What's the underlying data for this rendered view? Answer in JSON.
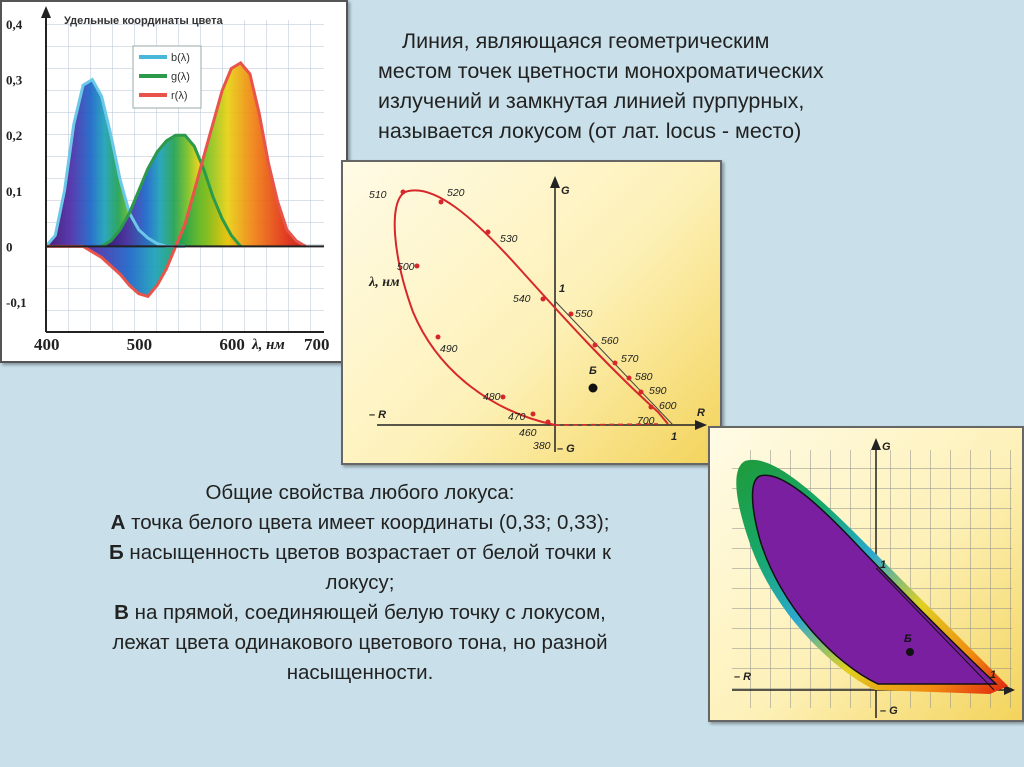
{
  "definition": {
    "lines": [
      "Линия, являющаяся геометрическим",
      "местом точек цветности монохроматических",
      "излучений и замкнутая линией пурпурных,",
      "называется локусом (от лат. locus - место)"
    ]
  },
  "properties": {
    "heading": "Общие свойства любого локуса:",
    "items": [
      {
        "letter": "А",
        "text": " точка белого цвета имеет координаты (0,33; 0,33);"
      },
      {
        "letter": "Б",
        "text": " насыщенность цветов возрастает от белой точки к"
      },
      {
        "letter": "",
        "text": "локусу;"
      },
      {
        "letter": "В",
        "text": " на прямой, соединяющей белую точку с локусом,"
      },
      {
        "letter": "",
        "text": "лежат цвета одинакового цветового тона, но разной"
      },
      {
        "letter": "",
        "text": "насыщенности."
      }
    ]
  },
  "colors": {
    "locus_line": "#d6282b",
    "axis": "#222222",
    "panel_yellow": "#f3d35a",
    "purple_fill": "#7a1fa0"
  },
  "chart_data": {
    "type": "area",
    "title": "Удельные координаты цвета",
    "xlabel": "λ, нм",
    "x_ticks": [
      "400",
      "500",
      "600",
      "700"
    ],
    "y_ticks": [
      "0,4",
      "0,3",
      "0,2",
      "0,1",
      "0",
      "-0,1"
    ],
    "xlim": [
      400,
      700
    ],
    "ylim": [
      -0.1,
      0.4
    ],
    "legend": [
      "b(λ)",
      "g(λ)",
      "r(λ)"
    ],
    "series": [
      {
        "name": "b(λ)",
        "x": [
          400,
          410,
          420,
          430,
          440,
          450,
          460,
          470,
          480,
          490,
          500,
          510,
          520,
          530,
          540,
          550
        ],
        "values": [
          0.0,
          0.02,
          0.1,
          0.22,
          0.29,
          0.3,
          0.27,
          0.2,
          0.12,
          0.06,
          0.03,
          0.015,
          0.005,
          0.0,
          0.0,
          0.0
        ]
      },
      {
        "name": "g(λ)",
        "x": [
          460,
          470,
          480,
          490,
          500,
          510,
          520,
          530,
          540,
          550,
          560,
          570,
          580,
          590,
          600,
          610
        ],
        "values": [
          0.0,
          0.01,
          0.03,
          0.06,
          0.1,
          0.14,
          0.17,
          0.19,
          0.2,
          0.2,
          0.18,
          0.14,
          0.09,
          0.05,
          0.02,
          0.0
        ]
      },
      {
        "name": "r(λ)",
        "x": [
          400,
          440,
          460,
          480,
          490,
          500,
          510,
          520,
          530,
          540,
          550,
          560,
          570,
          580,
          590,
          600,
          610,
          620,
          630,
          640,
          650,
          660,
          670,
          680
        ],
        "values": [
          0.0,
          0.0,
          -0.02,
          -0.05,
          -0.07,
          -0.085,
          -0.09,
          -0.07,
          -0.04,
          0.0,
          0.04,
          0.1,
          0.16,
          0.22,
          0.28,
          0.32,
          0.33,
          0.31,
          0.24,
          0.15,
          0.08,
          0.03,
          0.01,
          0.0
        ]
      }
    ]
  },
  "locus_diagram": {
    "axis_g": "G",
    "axis_neg_g": "– G",
    "axis_r": "R",
    "axis_neg_r": "– R",
    "axis_label": "λ, нм",
    "unit_g": "1",
    "unit_r": "1",
    "white_point": "Б",
    "wavelength_labels": [
      "510",
      "520",
      "530",
      "540",
      "550",
      "560",
      "570",
      "580",
      "590",
      "600",
      "700",
      "500",
      "490",
      "480",
      "470",
      "460",
      "380"
    ]
  },
  "color_locus": {
    "axis_g": "G",
    "axis_neg_g": "– G",
    "axis_neg_r": "– R",
    "unit_g": "1",
    "unit_r": "1",
    "white_point": "Б"
  }
}
